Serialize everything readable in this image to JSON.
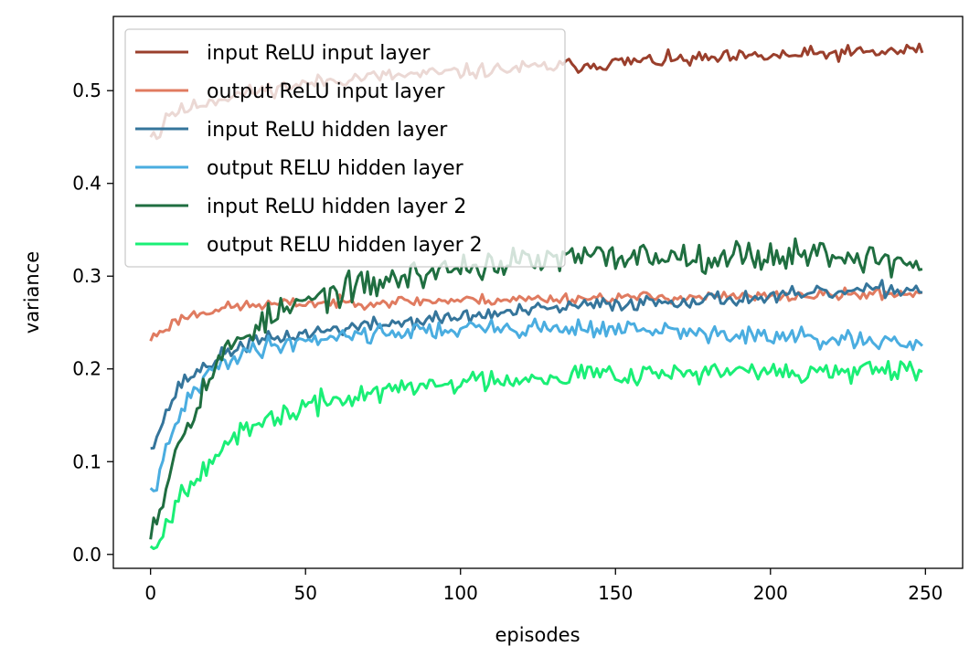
{
  "chart_data": {
    "type": "line",
    "xlabel": "episodes",
    "ylabel": "variance",
    "xlim": [
      -12,
      262
    ],
    "ylim": [
      -0.015,
      0.58
    ],
    "xticks": [
      0,
      50,
      100,
      150,
      200,
      250
    ],
    "yticks": [
      0.0,
      0.1,
      0.2,
      0.3,
      0.4,
      0.5
    ],
    "grid": false,
    "legend_position": "top-left",
    "series": [
      {
        "name": "input ReLU input layer",
        "color": "#9a3f2c",
        "anchors": [
          [
            0,
            0.455
          ],
          [
            3,
            0.452
          ],
          [
            5,
            0.475
          ],
          [
            10,
            0.478
          ],
          [
            20,
            0.49
          ],
          [
            30,
            0.497
          ],
          [
            40,
            0.503
          ],
          [
            50,
            0.507
          ],
          [
            60,
            0.512
          ],
          [
            70,
            0.515
          ],
          [
            80,
            0.516
          ],
          [
            100,
            0.52
          ],
          [
            120,
            0.524
          ],
          [
            140,
            0.528
          ],
          [
            150,
            0.53
          ],
          [
            160,
            0.532
          ],
          [
            180,
            0.534
          ],
          [
            200,
            0.537
          ],
          [
            220,
            0.54
          ],
          [
            240,
            0.542
          ],
          [
            249,
            0.545
          ]
        ],
        "noise": 0.004,
        "seed": 11
      },
      {
        "name": "output ReLU input layer",
        "color": "#e07b60",
        "anchors": [
          [
            0,
            0.232
          ],
          [
            3,
            0.24
          ],
          [
            10,
            0.255
          ],
          [
            20,
            0.264
          ],
          [
            30,
            0.268
          ],
          [
            50,
            0.271
          ],
          [
            70,
            0.272
          ],
          [
            100,
            0.274
          ],
          [
            150,
            0.277
          ],
          [
            200,
            0.278
          ],
          [
            249,
            0.282
          ]
        ],
        "noise": 0.003,
        "seed": 23
      },
      {
        "name": "input ReLU hidden layer",
        "color": "#35759b",
        "anchors": [
          [
            0,
            0.118
          ],
          [
            3,
            0.135
          ],
          [
            6,
            0.16
          ],
          [
            10,
            0.185
          ],
          [
            15,
            0.197
          ],
          [
            20,
            0.208
          ],
          [
            25,
            0.218
          ],
          [
            30,
            0.226
          ],
          [
            40,
            0.233
          ],
          [
            50,
            0.238
          ],
          [
            60,
            0.243
          ],
          [
            80,
            0.25
          ],
          [
            100,
            0.256
          ],
          [
            120,
            0.262
          ],
          [
            140,
            0.268
          ],
          [
            160,
            0.272
          ],
          [
            180,
            0.275
          ],
          [
            200,
            0.277
          ],
          [
            220,
            0.282
          ],
          [
            240,
            0.286
          ],
          [
            249,
            0.286
          ]
        ],
        "noise": 0.004,
        "seed": 37
      },
      {
        "name": "output RELU hidden layer",
        "color": "#4aade0",
        "anchors": [
          [
            0,
            0.065
          ],
          [
            3,
            0.085
          ],
          [
            6,
            0.12
          ],
          [
            10,
            0.155
          ],
          [
            15,
            0.18
          ],
          [
            20,
            0.198
          ],
          [
            25,
            0.21
          ],
          [
            30,
            0.218
          ],
          [
            40,
            0.226
          ],
          [
            50,
            0.231
          ],
          [
            60,
            0.236
          ],
          [
            80,
            0.24
          ],
          [
            100,
            0.243
          ],
          [
            120,
            0.244
          ],
          [
            140,
            0.244
          ],
          [
            150,
            0.243
          ],
          [
            170,
            0.24
          ],
          [
            190,
            0.236
          ],
          [
            210,
            0.233
          ],
          [
            230,
            0.229
          ],
          [
            249,
            0.224
          ]
        ],
        "noise": 0.005,
        "seed": 41
      },
      {
        "name": "input ReLU hidden layer 2",
        "color": "#1f6e40",
        "anchors": [
          [
            0,
            0.033
          ],
          [
            3,
            0.048
          ],
          [
            6,
            0.09
          ],
          [
            10,
            0.13
          ],
          [
            15,
            0.165
          ],
          [
            20,
            0.198
          ],
          [
            25,
            0.22
          ],
          [
            30,
            0.238
          ],
          [
            40,
            0.258
          ],
          [
            50,
            0.272
          ],
          [
            60,
            0.283
          ],
          [
            70,
            0.29
          ],
          [
            80,
            0.298
          ],
          [
            100,
            0.31
          ],
          [
            120,
            0.315
          ],
          [
            140,
            0.32
          ],
          [
            160,
            0.322
          ],
          [
            180,
            0.322
          ],
          [
            200,
            0.322
          ],
          [
            215,
            0.326
          ],
          [
            230,
            0.32
          ],
          [
            249,
            0.312
          ]
        ],
        "noise": 0.008,
        "seed": 53
      },
      {
        "name": "output RELU hidden layer 2",
        "color": "#1aef76",
        "anchors": [
          [
            0,
            0.011
          ],
          [
            3,
            0.018
          ],
          [
            6,
            0.038
          ],
          [
            10,
            0.068
          ],
          [
            15,
            0.088
          ],
          [
            20,
            0.105
          ],
          [
            25,
            0.118
          ],
          [
            30,
            0.13
          ],
          [
            40,
            0.148
          ],
          [
            50,
            0.158
          ],
          [
            60,
            0.167
          ],
          [
            70,
            0.173
          ],
          [
            80,
            0.178
          ],
          [
            100,
            0.186
          ],
          [
            120,
            0.191
          ],
          [
            140,
            0.195
          ],
          [
            160,
            0.196
          ],
          [
            180,
            0.196
          ],
          [
            200,
            0.196
          ],
          [
            220,
            0.197
          ],
          [
            249,
            0.195
          ]
        ],
        "noise": 0.006,
        "seed": 67
      }
    ]
  }
}
